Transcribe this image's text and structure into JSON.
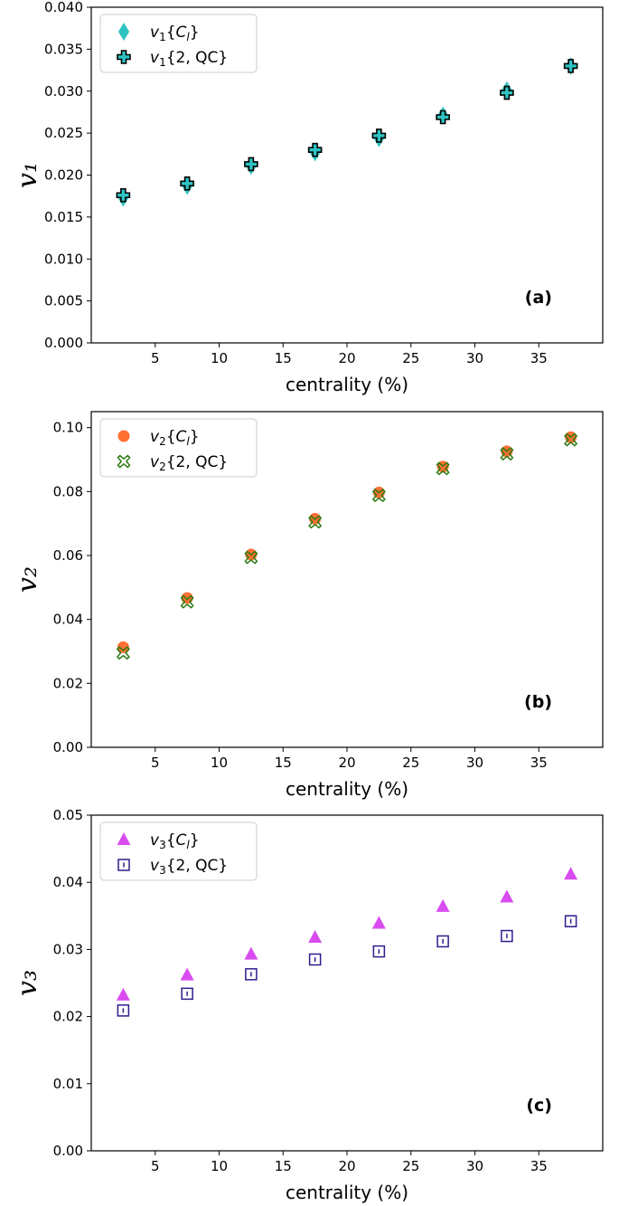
{
  "chart_data": [
    {
      "type": "scatter",
      "panel_label": "(a)",
      "xlabel": "centrality (%)",
      "ylabel": "v₁",
      "xlim": [
        0,
        40
      ],
      "ylim": [
        0,
        0.04
      ],
      "x_ticks": [
        5,
        10,
        15,
        20,
        25,
        30,
        35
      ],
      "x_tick_labels": [
        "5",
        "10",
        "15",
        "20",
        "25",
        "30",
        "35"
      ],
      "y_ticks": [
        0,
        0.005,
        0.01,
        0.015,
        0.02,
        0.025,
        0.03,
        0.035,
        0.04
      ],
      "y_tick_labels": [
        "0.000",
        "0.005",
        "0.010",
        "0.015",
        "0.020",
        "0.025",
        "0.030",
        "0.035",
        "0.040"
      ],
      "legend_position": "top-left",
      "series": [
        {
          "name": "v₁{Cₗ}",
          "legend_parts": {
            "sym": "v",
            "sub": "1",
            "rest": "{",
            "arg": "C",
            "argsub": "l",
            "close": "}"
          },
          "marker": "diamond",
          "color": "#2ec4c4",
          "x": [
            2.5,
            7.5,
            12.5,
            17.5,
            22.5,
            27.5,
            32.5,
            37.5
          ],
          "y": [
            0.0173,
            0.0187,
            0.0211,
            0.0227,
            0.0244,
            0.0271,
            0.0301,
            0.033
          ]
        },
        {
          "name": "v₁{2, QC}",
          "legend_parts": {
            "sym": "v",
            "sub": "1",
            "rest": "{2, QC}"
          },
          "marker": "plus",
          "color": "#2ec4c4",
          "edge_color": "#000000",
          "x": [
            2.5,
            7.5,
            12.5,
            17.5,
            22.5,
            27.5,
            32.5,
            37.5
          ],
          "y": [
            0.0176,
            0.019,
            0.0213,
            0.023,
            0.0247,
            0.0269,
            0.0298,
            0.033
          ]
        }
      ]
    },
    {
      "type": "scatter",
      "panel_label": "(b)",
      "xlabel": "centrality (%)",
      "ylabel": "v₂",
      "xlim": [
        0,
        40
      ],
      "ylim": [
        0,
        0.105
      ],
      "x_ticks": [
        5,
        10,
        15,
        20,
        25,
        30,
        35
      ],
      "x_tick_labels": [
        "5",
        "10",
        "15",
        "20",
        "25",
        "30",
        "35"
      ],
      "y_ticks": [
        0,
        0.02,
        0.04,
        0.06,
        0.08,
        0.1
      ],
      "y_tick_labels": [
        "0.00",
        "0.02",
        "0.04",
        "0.06",
        "0.08",
        "0.10"
      ],
      "legend_position": "top-left",
      "series": [
        {
          "name": "v₂{Cₗ}",
          "legend_parts": {
            "sym": "v",
            "sub": "2",
            "rest": "{",
            "arg": "C",
            "argsub": "l",
            "close": "}"
          },
          "marker": "circle",
          "color": "#ff7033",
          "x": [
            2.5,
            7.5,
            12.5,
            17.5,
            22.5,
            27.5,
            32.5,
            37.5
          ],
          "y": [
            0.0313,
            0.0467,
            0.0603,
            0.0715,
            0.0797,
            0.0878,
            0.0926,
            0.097
          ]
        },
        {
          "name": "v₂{2, QC}",
          "legend_parts": {
            "sym": "v",
            "sub": "2",
            "rest": "{2, QC}"
          },
          "marker": "x",
          "color": "#2a7a12",
          "x": [
            2.5,
            7.5,
            12.5,
            17.5,
            22.5,
            27.5,
            32.5,
            37.5
          ],
          "y": [
            0.0295,
            0.0455,
            0.0594,
            0.0705,
            0.0788,
            0.0872,
            0.0918,
            0.0962
          ]
        }
      ]
    },
    {
      "type": "scatter",
      "panel_label": "(c)",
      "xlabel": "centrality (%)",
      "ylabel": "v₃",
      "xlim": [
        0,
        40
      ],
      "ylim": [
        0,
        0.05
      ],
      "x_ticks": [
        5,
        10,
        15,
        20,
        25,
        30,
        35
      ],
      "x_tick_labels": [
        "5",
        "10",
        "15",
        "20",
        "25",
        "30",
        "35"
      ],
      "y_ticks": [
        0,
        0.01,
        0.02,
        0.03,
        0.04,
        0.05
      ],
      "y_tick_labels": [
        "0.00",
        "0.01",
        "0.02",
        "0.03",
        "0.04",
        "0.05"
      ],
      "legend_position": "top-left",
      "series": [
        {
          "name": "v₃{Cₗ}",
          "legend_parts": {
            "sym": "v",
            "sub": "3",
            "rest": "{",
            "arg": "C",
            "argsub": "l",
            "close": "}"
          },
          "marker": "triangle",
          "color": "#d94cf0",
          "x": [
            2.5,
            7.5,
            12.5,
            17.5,
            22.5,
            27.5,
            32.5,
            37.5
          ],
          "y": [
            0.0232,
            0.0262,
            0.0293,
            0.0318,
            0.0339,
            0.0364,
            0.0378,
            0.0412
          ]
        },
        {
          "name": "v₃{2, QC}",
          "legend_parts": {
            "sym": "v",
            "sub": "3",
            "rest": "{2, QC}"
          },
          "marker": "square",
          "color": "#2e1d8c",
          "x": [
            2.5,
            7.5,
            12.5,
            17.5,
            22.5,
            27.5,
            32.5,
            37.5
          ],
          "y": [
            0.0209,
            0.0234,
            0.0263,
            0.0285,
            0.0297,
            0.0312,
            0.032,
            0.0342
          ]
        }
      ]
    }
  ]
}
